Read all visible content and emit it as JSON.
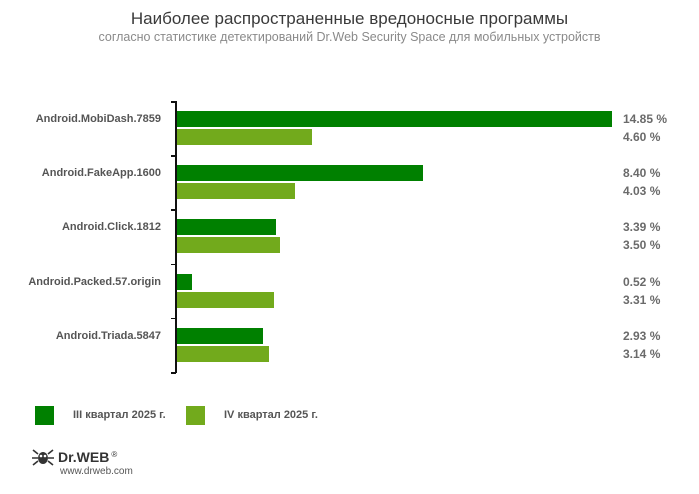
{
  "header": {
    "title": "Наиболее распространенные вредоносные программы",
    "subtitle": "согласно статистике детектирований Dr.Web Security Space для мобильных устройств"
  },
  "colors": {
    "q3": "#008000",
    "q4": "#72aa1c"
  },
  "legend": [
    {
      "label": "III квартал 2025 г.",
      "color": "#008000"
    },
    {
      "label": "IV квартал 2025 г.",
      "color": "#72aa1c"
    }
  ],
  "footer": {
    "brand": "Dr.WEB",
    "registered": "®",
    "url": "www.drweb.com"
  },
  "chart_data": {
    "type": "bar",
    "orientation": "horizontal",
    "title": "Наиболее распространенные вредоносные программы",
    "subtitle": "согласно статистике детектирований Dr.Web Security Space для мобильных устройств",
    "xlabel": "",
    "ylabel": "",
    "categories": [
      "Android.MobiDash.7859",
      "Android.FakeApp.1600",
      "Android.Click.1812",
      "Android.Packed.57.origin",
      "Android.Triada.5847"
    ],
    "series": [
      {
        "name": "III квартал 2025 г.",
        "values": [
          14.85,
          8.4,
          3.39,
          0.52,
          2.93
        ],
        "labels": [
          "14.85 %",
          "8.40 %",
          "3.39 %",
          "0.52 %",
          "2.93 %"
        ]
      },
      {
        "name": "IV квартал 2025 г.",
        "values": [
          4.6,
          4.03,
          3.5,
          3.31,
          3.14
        ],
        "labels": [
          "4.60 %",
          "4.03 %",
          "3.50 %",
          "3.31 %",
          "3.14 %"
        ]
      }
    ],
    "unit": "%",
    "grid": false,
    "legend_position": "bottom-left"
  }
}
